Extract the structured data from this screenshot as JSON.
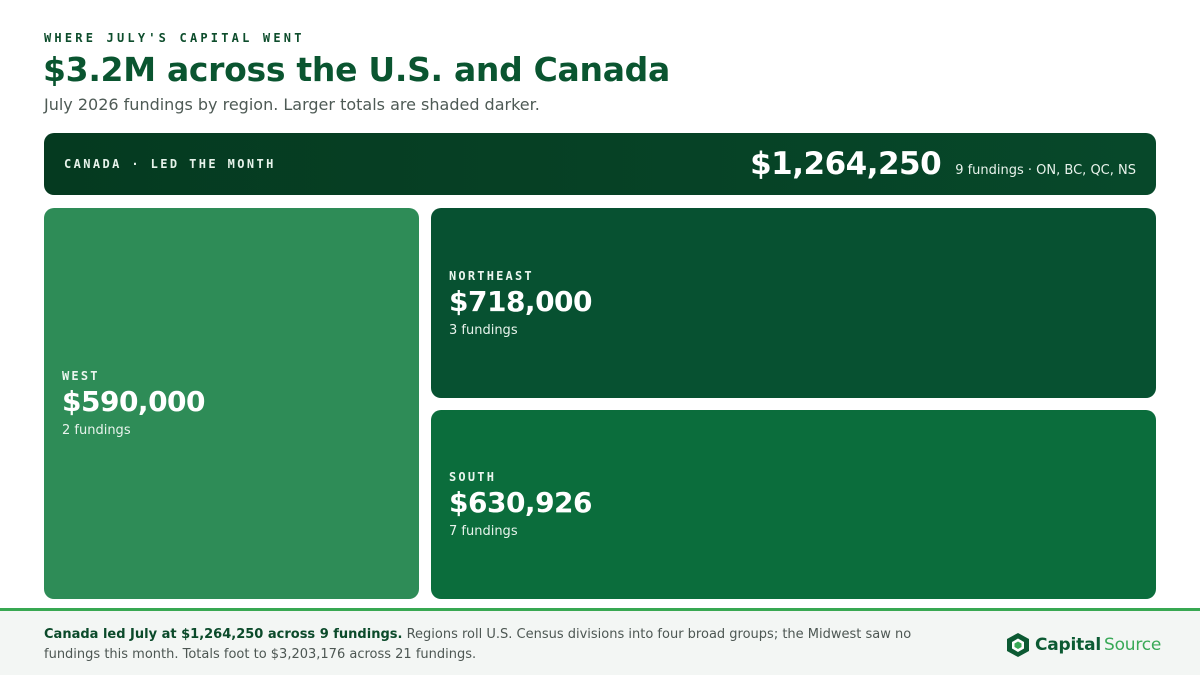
{
  "header": {
    "eyebrow": "WHERE JULY'S CAPITAL WENT",
    "title": "$3.2M across the U.S. and Canada",
    "subtitle": "July 2026 fundings by region. Larger totals are shaded darker."
  },
  "colors": {
    "darkest": "#053a20",
    "northeast": "#075131",
    "south": "#0b6d3c",
    "west": "#2e8c57",
    "accent": "#38a852"
  },
  "chart_data": {
    "type": "treemap",
    "title": "$3.2M across the U.S. and Canada",
    "subtitle": "July 2026 fundings by region. Larger totals are shaded darker.",
    "regions": [
      {
        "name": "CANADA",
        "label": "CANADA · LED THE MONTH",
        "value": 1264250,
        "value_label": "$1,264,250",
        "fundings": 9,
        "note": "9 fundings · ON, BC, QC, NS"
      },
      {
        "name": "NORTHEAST",
        "value": 718000,
        "value_label": "$718,000",
        "fundings": 3,
        "note": "3 fundings"
      },
      {
        "name": "SOUTH",
        "value": 630926,
        "value_label": "$630,926",
        "fundings": 7,
        "note": "7 fundings"
      },
      {
        "name": "WEST",
        "value": 590000,
        "value_label": "$590,000",
        "fundings": 2,
        "note": "2 fundings"
      }
    ]
  },
  "footer": {
    "lead": "Canada led July at $1,264,250 across 9 fundings.",
    "text": " Regions roll U.S. Census divisions into four broad groups; the Midwest saw no fundings this month. Totals foot to $3,203,176 across 21 fundings."
  },
  "logo": {
    "icon": "hexagon-logo-icon",
    "name_part1": "Capital",
    "name_part2": "Source"
  }
}
